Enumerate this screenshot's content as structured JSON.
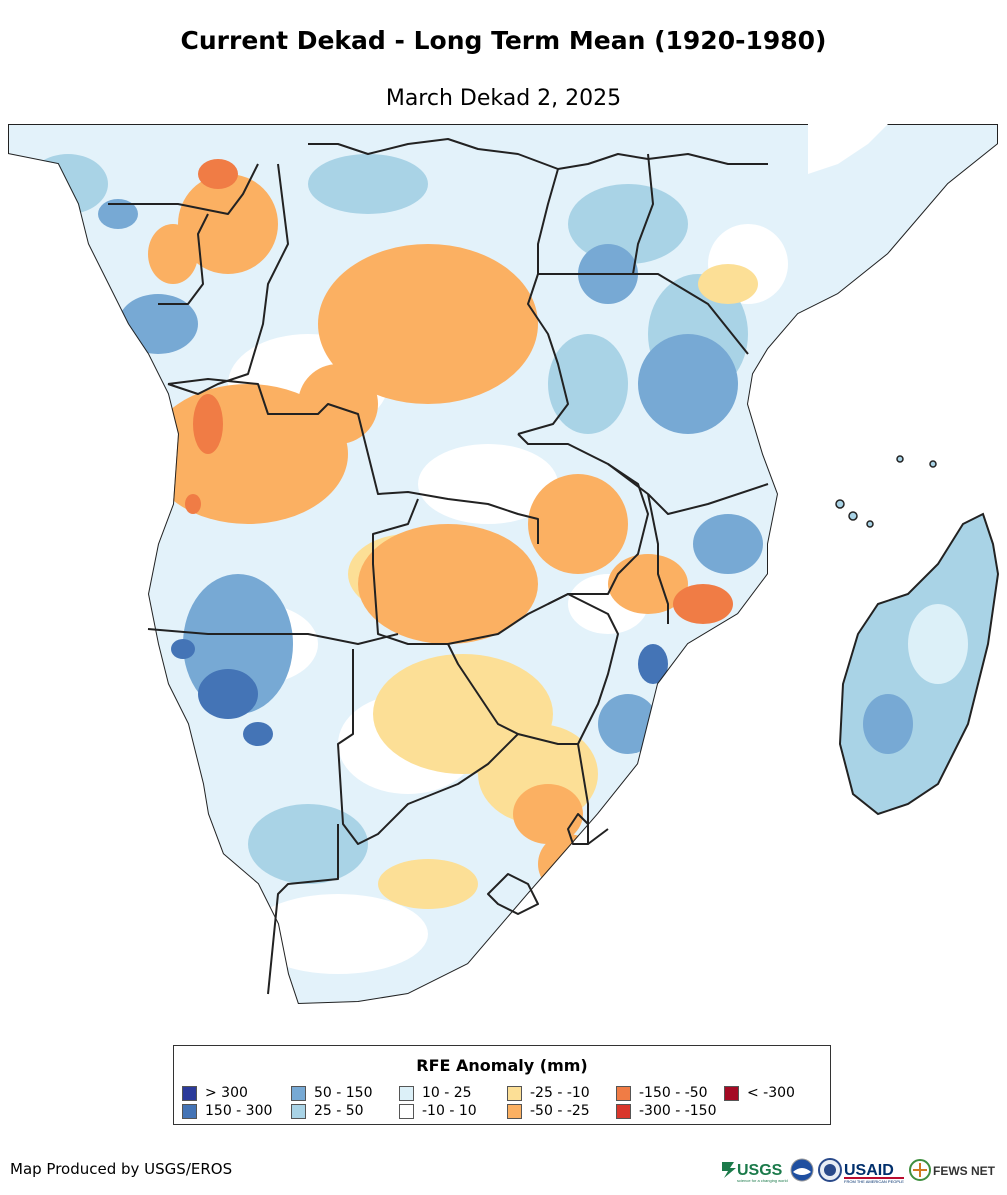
{
  "header": {
    "title": "Current Dekad - Long Term Mean (1920-1980)",
    "subtitle": "March Dekad 2, 2025"
  },
  "map": {
    "region": "Southern Africa",
    "colors": {
      "ocean": "#ffffff",
      "border": "#222222"
    }
  },
  "legend": {
    "title": "RFE Anomaly (mm)",
    "items": [
      {
        "label": "> 300",
        "color": "#2b3a9a"
      },
      {
        "label": "150 - 300",
        "color": "#4474b6"
      },
      {
        "label": "50 - 150",
        "color": "#77a9d4"
      },
      {
        "label": "25 - 50",
        "color": "#a9d3e6"
      },
      {
        "label": "10 - 25",
        "color": "#dcf0f8"
      },
      {
        "label": "-10 - 10",
        "color": "#ffffff"
      },
      {
        "label": "-25 - -10",
        "color": "#fcdf96"
      },
      {
        "label": "-50 - -25",
        "color": "#fbb062"
      },
      {
        "label": "-150 - -50",
        "color": "#f07c45"
      },
      {
        "label": "-300 - -150",
        "color": "#d9362b"
      },
      {
        "label": "< -300",
        "color": "#a40a24"
      }
    ]
  },
  "footer": {
    "credit": "Map Produced by USGS/EROS",
    "logos": {
      "usgs": "USGS",
      "usgs_tagline": "science for a changing world",
      "usaid": "USAID",
      "usaid_tagline": "FROM THE AMERICAN PEOPLE",
      "fewsnet": "FEWS NET"
    }
  }
}
